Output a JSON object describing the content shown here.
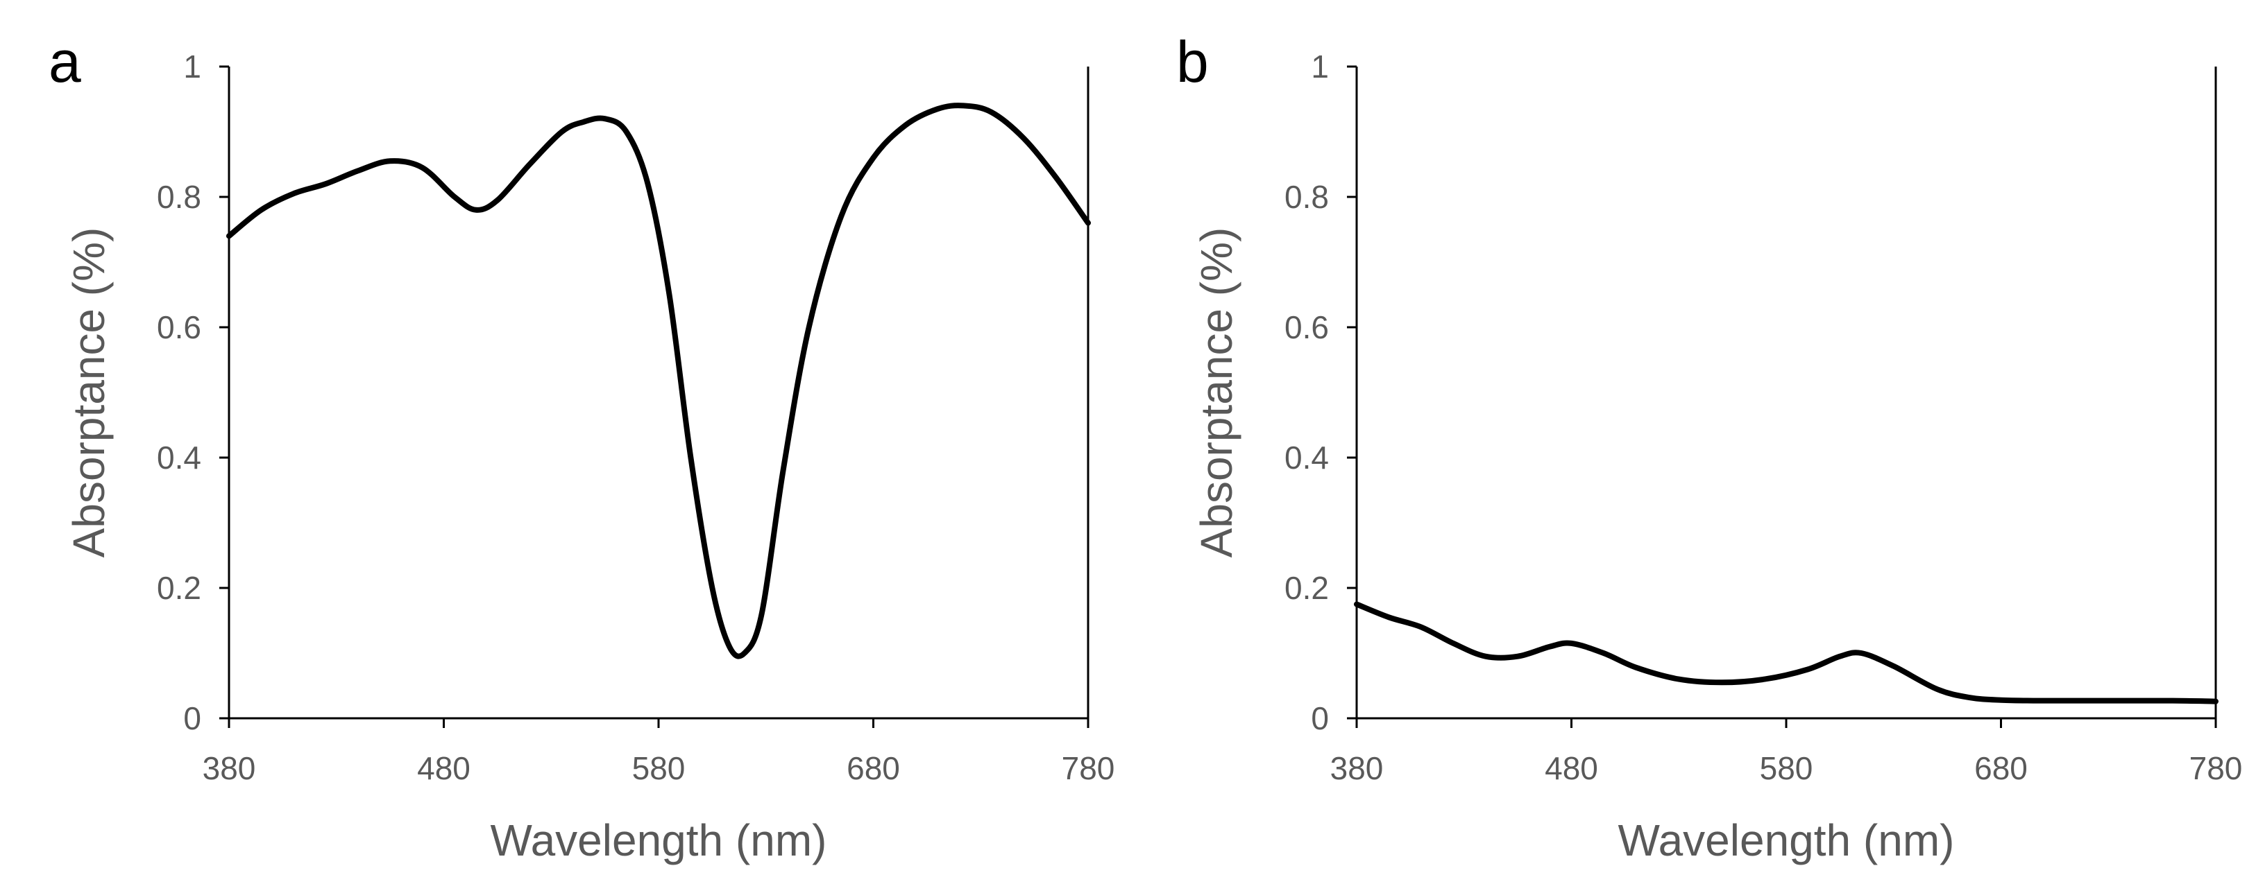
{
  "chart_data": [
    {
      "panel": "a",
      "type": "line",
      "title": "",
      "xlabel": "Wavelength (nm)",
      "ylabel": "Absorptance (%)",
      "xlim": [
        380,
        780
      ],
      "ylim": [
        0,
        1
      ],
      "xticks": [
        380,
        480,
        580,
        680,
        780
      ],
      "yticks": [
        0,
        0.2,
        0.4,
        0.6,
        0.8,
        1
      ],
      "x_tick_labels": [
        "380",
        "480",
        "580",
        "680",
        "780"
      ],
      "y_tick_labels": [
        "0",
        "0.2",
        "0.4",
        "0.6",
        "0.8",
        "1"
      ],
      "grid": false,
      "series": [
        {
          "name": "",
          "color": "#000000",
          "x": [
            380,
            395,
            410,
            425,
            440,
            455,
            470,
            485,
            495,
            505,
            520,
            535,
            545,
            555,
            565,
            575,
            585,
            595,
            605,
            613,
            620,
            628,
            638,
            650,
            665,
            680,
            695,
            710,
            722,
            735,
            750,
            765,
            780
          ],
          "y": [
            0.74,
            0.78,
            0.805,
            0.82,
            0.84,
            0.855,
            0.845,
            0.8,
            0.78,
            0.795,
            0.85,
            0.9,
            0.915,
            0.92,
            0.9,
            0.82,
            0.65,
            0.4,
            0.2,
            0.11,
            0.1,
            0.16,
            0.38,
            0.6,
            0.77,
            0.86,
            0.91,
            0.935,
            0.94,
            0.93,
            0.89,
            0.83,
            0.76
          ]
        }
      ]
    },
    {
      "panel": "b",
      "type": "line",
      "title": "",
      "xlabel": "Wavelength (nm)",
      "ylabel": "Absorptance (%)",
      "xlim": [
        380,
        780
      ],
      "ylim": [
        0,
        1
      ],
      "xticks": [
        380,
        480,
        580,
        680,
        780
      ],
      "yticks": [
        0,
        0.2,
        0.4,
        0.6,
        0.8,
        1
      ],
      "x_tick_labels": [
        "380",
        "480",
        "580",
        "680",
        "780"
      ],
      "y_tick_labels": [
        "0",
        "0.2",
        "0.4",
        "0.6",
        "0.8",
        "1"
      ],
      "grid": false,
      "series": [
        {
          "name": "",
          "color": "#000000",
          "x": [
            380,
            395,
            410,
            425,
            440,
            455,
            470,
            480,
            495,
            510,
            530,
            550,
            570,
            590,
            605,
            615,
            630,
            650,
            665,
            680,
            700,
            730,
            760,
            780
          ],
          "y": [
            0.175,
            0.155,
            0.14,
            0.115,
            0.095,
            0.095,
            0.11,
            0.115,
            0.1,
            0.078,
            0.06,
            0.055,
            0.06,
            0.075,
            0.095,
            0.1,
            0.08,
            0.045,
            0.032,
            0.028,
            0.027,
            0.027,
            0.027,
            0.026
          ]
        }
      ]
    }
  ],
  "panels": [
    {
      "letter": "a"
    },
    {
      "letter": "b"
    }
  ]
}
